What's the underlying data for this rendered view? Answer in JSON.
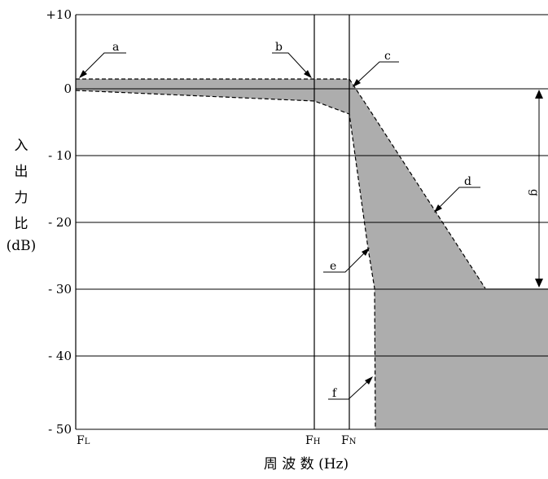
{
  "chart_data": {
    "type": "line",
    "y_axis": {
      "ticks": [
        10,
        0,
        -10,
        -20,
        -30,
        -40,
        -50
      ],
      "tick_labels": [
        "+10",
        "0",
        "- 10",
        "- 20",
        "- 30",
        "- 40",
        "- 50"
      ],
      "label_chars": [
        "入",
        "出",
        "力",
        "比"
      ],
      "label_unit": "(dB)",
      "ylim": [
        -50,
        10
      ]
    },
    "x_axis": {
      "label": "周 波 数 (Hz)",
      "markers": [
        {
          "main": "F",
          "sub": "L"
        },
        {
          "main": "F",
          "sub": "H"
        },
        {
          "main": "F",
          "sub": "N"
        }
      ]
    },
    "grid": "horizontal",
    "upper_boundary": {
      "pass_level_db": 1.5,
      "stop_level_db": -30,
      "style": "dashed"
    },
    "lower_boundary": {
      "pass_start_db": -0.5,
      "at_FH_db": -2,
      "at_FN_db": -4,
      "floor_db": -50,
      "style": "dashed"
    },
    "shaded_region": "between boundaries",
    "annotations": [
      "a",
      "b",
      "c",
      "d",
      "e",
      "f",
      "g"
    ]
  }
}
